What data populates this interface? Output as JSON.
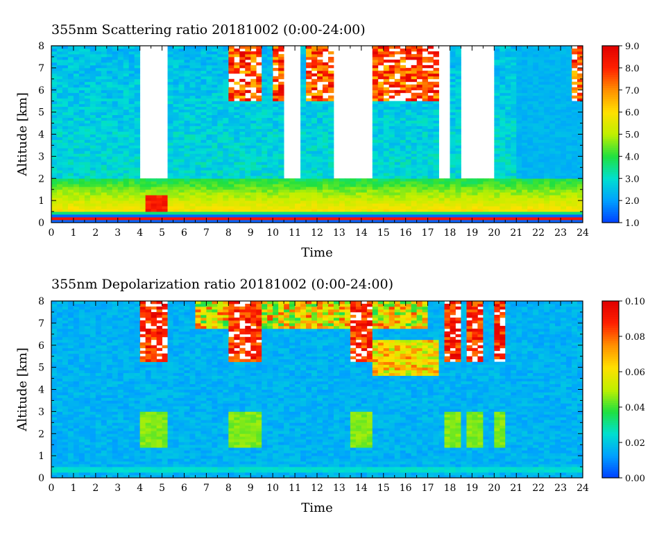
{
  "chart_data": [
    {
      "type": "heatmap",
      "title": "355nm Scattering ratio  20181002 (0:00-24:00)",
      "xlabel": "Time",
      "ylabel": "Altitude [km]",
      "xlim": [
        0,
        24
      ],
      "ylim": [
        0,
        8
      ],
      "xticks": [
        "0",
        "1",
        "2",
        "3",
        "4",
        "5",
        "6",
        "7",
        "8",
        "9",
        "10",
        "11",
        "12",
        "13",
        "14",
        "15",
        "16",
        "17",
        "18",
        "19",
        "20",
        "21",
        "22",
        "23",
        "24"
      ],
      "yticks": [
        "0",
        "1",
        "2",
        "3",
        "4",
        "5",
        "6",
        "7",
        "8"
      ],
      "colorbar": {
        "range": [
          1.0,
          9.0
        ],
        "ticks": [
          "1.0",
          "2.0",
          "3.0",
          "4.0",
          "5.0",
          "6.0",
          "7.0",
          "8.0",
          "9.0"
        ]
      },
      "grid": false,
      "colormap": [
        "#0040ff",
        "#00a0ff",
        "#00e0d0",
        "#20e040",
        "#c0f000",
        "#ffe000",
        "#ff9000",
        "#ff2000",
        "#e00000"
      ],
      "features": {
        "boundary_layer_top_km": 2.0,
        "surface_layer_km": [
          0.4,
          0.5
        ],
        "cloud_columns_hours": [
          [
            8.0,
            9.5
          ],
          [
            10.0,
            11.0
          ],
          [
            11.5,
            13.0
          ],
          [
            14.5,
            15.5
          ],
          [
            15.5,
            17.5
          ],
          [
            23.5,
            24.0
          ]
        ],
        "cloud_base_km": 5.5
      }
    },
    {
      "type": "heatmap",
      "title": "355nm Depolarization ratio  20181002 (0:00-24:00)",
      "xlabel": "Time",
      "ylabel": "Altitude [km]",
      "xlim": [
        0,
        24
      ],
      "ylim": [
        0,
        8
      ],
      "xticks": [
        "0",
        "1",
        "2",
        "3",
        "4",
        "5",
        "6",
        "7",
        "8",
        "9",
        "10",
        "11",
        "12",
        "13",
        "14",
        "15",
        "16",
        "17",
        "18",
        "19",
        "20",
        "21",
        "22",
        "23",
        "24"
      ],
      "yticks": [
        "0",
        "1",
        "2",
        "3",
        "4",
        "5",
        "6",
        "7",
        "8"
      ],
      "colorbar": {
        "range": [
          0.0,
          0.1
        ],
        "ticks": [
          "0.00",
          "0.02",
          "0.04",
          "0.06",
          "0.08",
          "0.10"
        ]
      },
      "grid": false,
      "colormap": [
        "#0040ff",
        "#00a0ff",
        "#00e0d0",
        "#20e040",
        "#c0f000",
        "#ffe000",
        "#ff9000",
        "#ff2000",
        "#e00000"
      ],
      "features": {
        "background_level": 0.01,
        "high_depol_columns_hours": [
          [
            4.0,
            5.2
          ],
          [
            8.0,
            9.5
          ],
          [
            13.5,
            14.5
          ],
          [
            17.8,
            18.5
          ],
          [
            18.8,
            19.6
          ],
          [
            20.0,
            20.4
          ]
        ],
        "low_cloud_patches_km": [
          1.4,
          3.0
        ]
      }
    }
  ]
}
